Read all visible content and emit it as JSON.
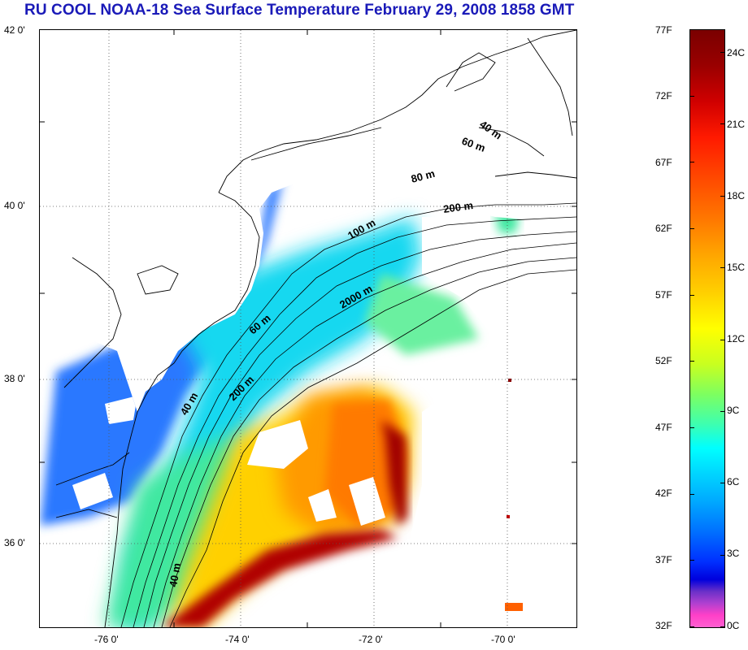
{
  "title": "RU COOL  NOAA-18 Sea Surface Temperature February 29, 2008 1858 GMT",
  "map": {
    "lat_labels": [
      "42 0'",
      "40 0'",
      "38 0'",
      "36 0'"
    ],
    "lon_labels": [
      "-76 0'",
      "-74 0'",
      "-72 0'",
      "-70 0'"
    ],
    "lat_range": [
      35.0,
      42.0
    ],
    "lon_range": [
      -77.0,
      -69.0
    ],
    "grid": "dotted",
    "contour_labels": [
      "40 m",
      "60 m",
      "80 m",
      "200 m",
      "100 m",
      "2000 m",
      "60 m",
      "200 m",
      "40 m",
      "40 m"
    ]
  },
  "colorbar": {
    "fahrenheit_labels": [
      "77F",
      "72F",
      "67F",
      "62F",
      "57F",
      "52F",
      "47F",
      "42F",
      "37F",
      "32F"
    ],
    "celsius_labels": [
      "24C",
      "21C",
      "18C",
      "15C",
      "12C",
      "9C",
      "6C",
      "3C",
      "0C"
    ],
    "f_range": [
      32,
      77
    ],
    "c_range": [
      0,
      25
    ]
  },
  "colors": {
    "title": "#1a1ab8",
    "warm": "#ff8a00",
    "hot": "#8a0000",
    "cool": "#00e0e0",
    "cold": "#2a6aff",
    "land": "#ffffff",
    "clouds": "#ffffff"
  }
}
